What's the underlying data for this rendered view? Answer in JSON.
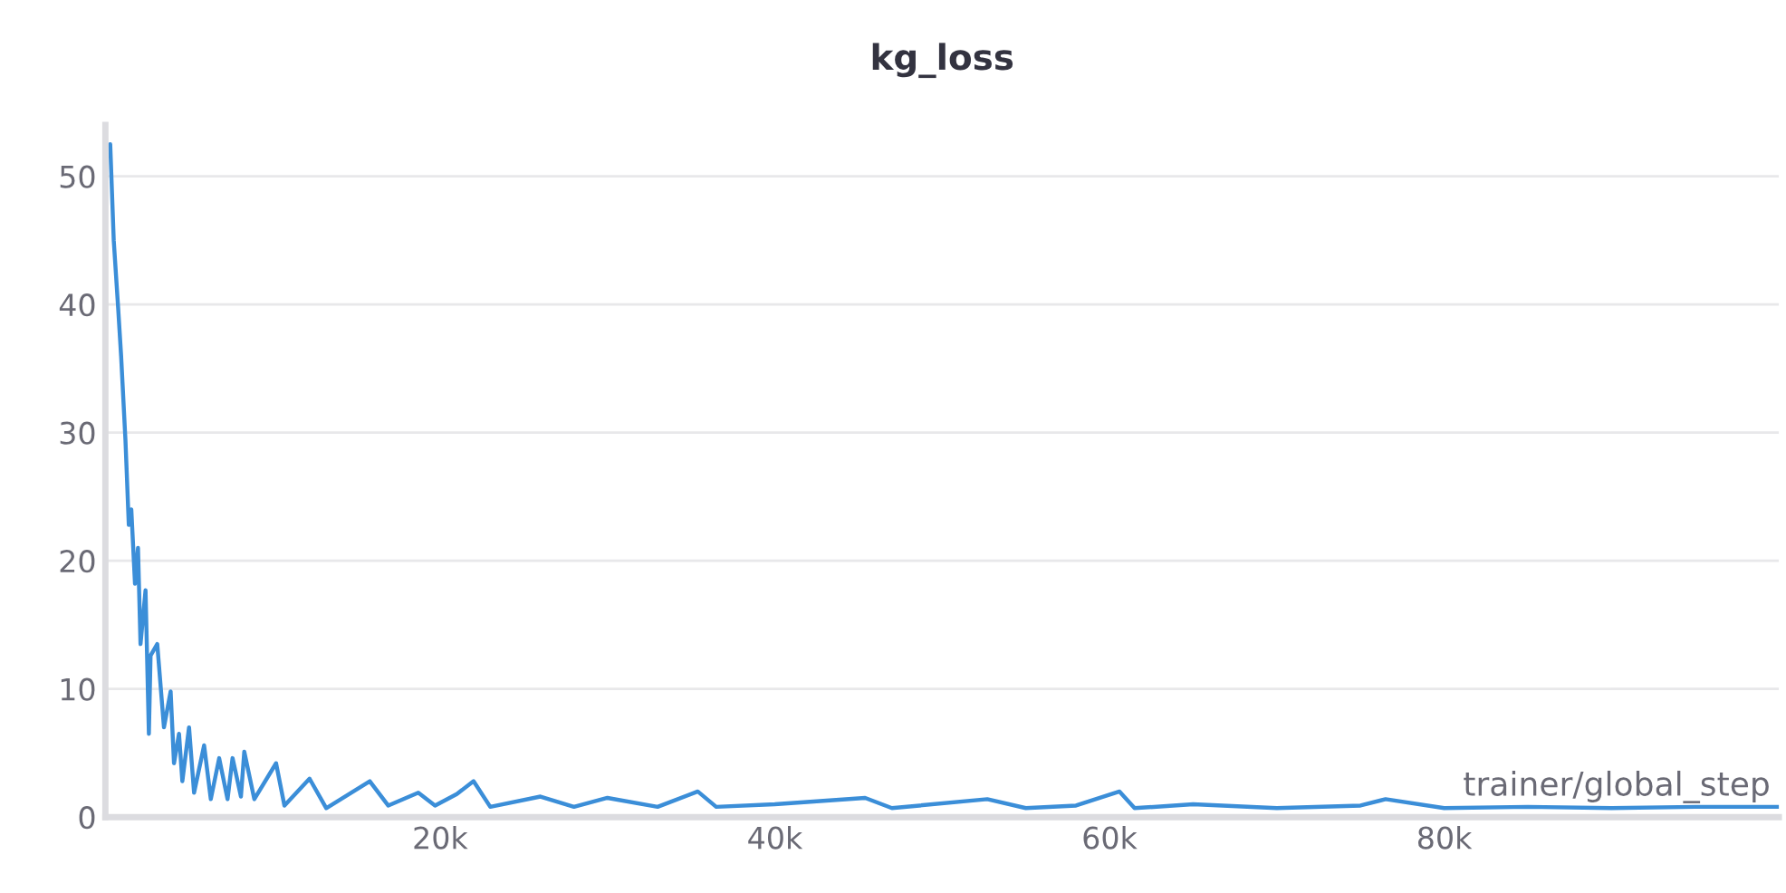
{
  "chart_data": {
    "type": "line",
    "title": "kg_loss",
    "xlabel": "trainer/global_step",
    "xlim": [
      0,
      100000
    ],
    "ylim": [
      0,
      54
    ],
    "xticks": [
      {
        "value": 20000,
        "label": "20k"
      },
      {
        "value": 40000,
        "label": "40k"
      },
      {
        "value": 60000,
        "label": "60k"
      },
      {
        "value": 80000,
        "label": "80k"
      }
    ],
    "yticks": [
      0,
      10,
      20,
      30,
      40,
      50
    ],
    "grid": "y",
    "legend": false,
    "line_style": "solid",
    "x": [
      290,
      500,
      760,
      940,
      1200,
      1400,
      1550,
      1770,
      1950,
      2100,
      2400,
      2600,
      2700,
      3100,
      3500,
      3900,
      4100,
      4400,
      4600,
      5000,
      5300,
      5900,
      6300,
      6800,
      7300,
      7600,
      8100,
      8300,
      8900,
      10200,
      10700,
      12200,
      13200,
      15800,
      16900,
      18700,
      19700,
      21000,
      22000,
      23000,
      26000,
      28000,
      30000,
      33000,
      35400,
      36500,
      40000,
      45400,
      47000,
      52700,
      55000,
      58000,
      60600,
      61500,
      65000,
      70000,
      75000,
      76500,
      80000,
      85000,
      90000,
      95000,
      100000
    ],
    "series": [
      {
        "color": "#3b8ed8",
        "values": [
          52.5,
          45,
          39.8,
          36,
          29.4,
          22.8,
          24,
          18.2,
          21,
          13.5,
          17.7,
          6.5,
          12.6,
          13.5,
          7,
          9.8,
          4.2,
          6.5,
          2.8,
          7,
          1.9,
          5.6,
          1.4,
          4.6,
          1.4,
          4.6,
          1.6,
          5.1,
          1.4,
          4.2,
          0.9,
          3,
          0.7,
          2.8,
          0.9,
          1.9,
          0.9,
          1.8,
          2.8,
          0.8,
          1.6,
          0.8,
          1.5,
          0.8,
          2.0,
          0.8,
          1.0,
          1.5,
          0.7,
          1.4,
          0.7,
          0.9,
          2.0,
          0.7,
          1.0,
          0.7,
          0.9,
          1.4,
          0.7,
          0.8,
          0.7,
          0.8,
          0.8
        ]
      }
    ]
  }
}
